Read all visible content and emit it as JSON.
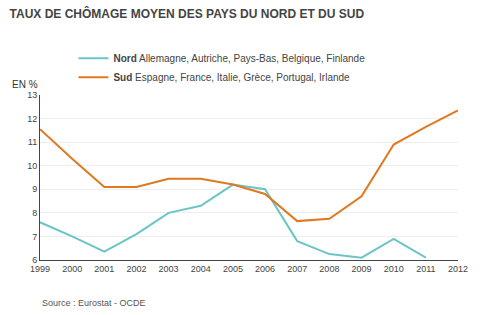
{
  "chart_data": {
    "type": "line",
    "title": "TAUX DE CHÔMAGE MOYEN DES PAYS DU NORD ET DU SUD",
    "ylabel": "EN %",
    "annotations": [
      "Source : Eurostat - OCDE"
    ],
    "x": [
      1999,
      2000,
      2001,
      2002,
      2003,
      2004,
      2005,
      2006,
      2007,
      2008,
      2009,
      2010,
      2011,
      2012
    ],
    "series": [
      {
        "name": "Nord Allemagne, Autriche, Pays-Bas, Belgique, Finlande",
        "color": "#6cc5c5",
        "values": [
          7.6,
          7.0,
          6.35,
          7.1,
          8.0,
          8.3,
          9.2,
          9.0,
          6.8,
          6.25,
          6.1,
          6.9,
          6.1,
          null
        ]
      },
      {
        "name": "Sud Espagne, France, Italie, Grèce, Portugal, Irlande",
        "color": "#e07820",
        "values": [
          11.55,
          10.3,
          9.1,
          9.1,
          9.45,
          9.45,
          9.2,
          8.8,
          7.65,
          7.75,
          8.7,
          10.9,
          11.65,
          12.35
        ]
      }
    ],
    "xlim": [
      1999,
      2012
    ],
    "xticks": [
      1999,
      2000,
      2001,
      2002,
      2003,
      2004,
      2005,
      2006,
      2007,
      2008,
      2009,
      2010,
      2011,
      2012
    ],
    "ylim": [
      6,
      13
    ],
    "yticks": [
      6,
      7,
      8,
      9,
      10,
      11,
      12,
      13
    ],
    "grid": true,
    "legend": "upper left"
  }
}
